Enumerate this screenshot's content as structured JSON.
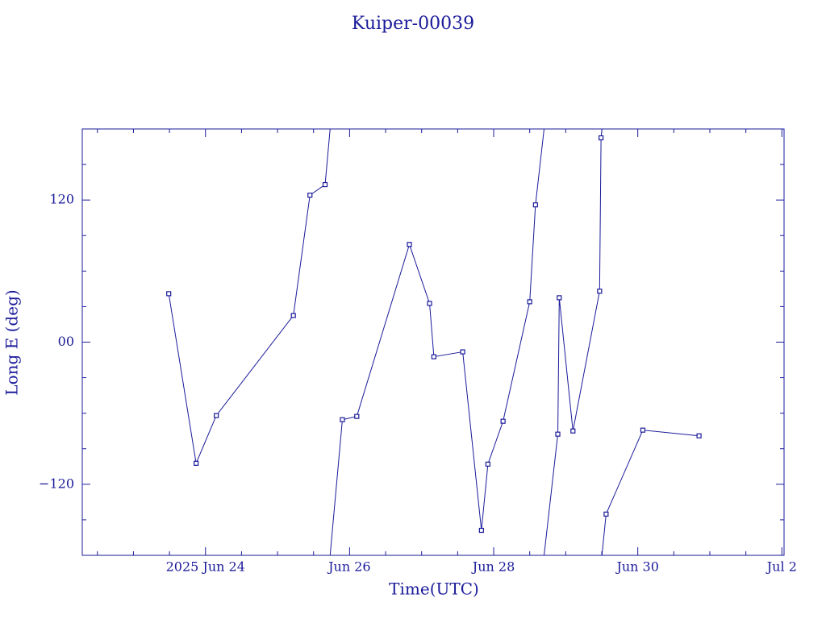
{
  "chart_data": {
    "type": "line",
    "title": "Kuiper-00039",
    "x_label": "Time(UTC)",
    "y_label": "Long E (deg)",
    "color": "#1a1a9a",
    "xlim": [
      22.29,
      32.03
    ],
    "xticks": [
      {
        "value": 24,
        "label": "2025 Jun 24"
      },
      {
        "value": 26,
        "label": "Jun 26"
      },
      {
        "value": 28,
        "label": "Jun 28"
      },
      {
        "value": 30,
        "label": "Jun 30"
      },
      {
        "value": 32,
        "label": "Jul  2"
      }
    ],
    "xminorticks": [
      22.5,
      23,
      23.5,
      24.5,
      25,
      25.5,
      26.5,
      27,
      27.5,
      28.5,
      29,
      29.5,
      30.5,
      31,
      31.5
    ],
    "ylim": [
      -180,
      180
    ],
    "yticks": [
      {
        "value": 120,
        "label": "120"
      },
      {
        "value": 0,
        "label": "00"
      },
      {
        "value": -120,
        "label": "−120"
      }
    ],
    "yminorticks": [
      150,
      90,
      60,
      30,
      -30,
      -60,
      -90,
      -150
    ],
    "series": [
      {
        "name": "Kuiper-00039",
        "color": "#1a1a9a",
        "x": [
          23.49,
          23.87,
          24.15,
          25.22,
          25.45,
          25.66,
          25.9,
          26.1,
          26.83,
          27.11,
          27.17,
          27.57,
          27.83,
          27.92,
          28.13,
          28.5,
          28.58,
          28.89,
          28.91,
          29.1,
          29.47,
          29.49,
          29.56,
          30.07,
          30.85
        ],
        "values": [
          40.9,
          -102.3,
          -62.0,
          22.5,
          124.1,
          133.0,
          -65.5,
          -62.7,
          82.5,
          32.7,
          -12.3,
          -8.2,
          -158.9,
          -103.0,
          -66.8,
          34.1,
          115.9,
          -77.7,
          37.5,
          -75.0,
          43.0,
          172.5,
          -145.2,
          -74.3,
          -79.1
        ]
      }
    ]
  }
}
